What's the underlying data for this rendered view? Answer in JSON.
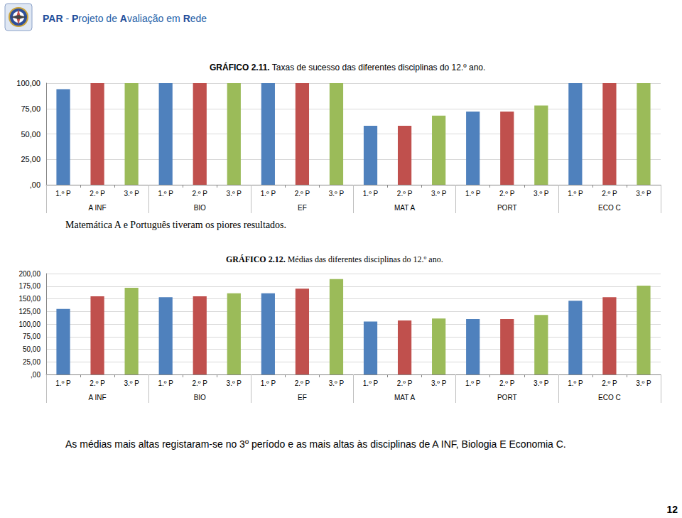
{
  "page": {
    "header": "PAR - Projeto de Avaliação em Rede",
    "page_number": 12
  },
  "chart_data": [
    {
      "type": "bar",
      "title": "GRÁFICO 2.11. Taxas de sucesso das diferentes disciplinas do 12.º ano.",
      "categories": [
        "1.º P",
        "2.º P",
        "3.º P",
        "1.º P",
        "2.º P",
        "3.º P",
        "1.º P",
        "2.º P",
        "3.º P",
        "1.º P",
        "2.º P",
        "3.º P",
        "1.º P",
        "2.º P",
        "3.º P",
        "1.º P",
        "2.º P",
        "3.º P"
      ],
      "group_labels": [
        "A INF",
        "BIO",
        "EF",
        "MAT A",
        "PORT",
        "ECO C"
      ],
      "values": [
        94,
        100,
        100,
        100,
        100,
        100,
        100,
        100,
        100,
        58,
        58,
        68,
        72,
        72,
        78,
        100,
        100,
        100
      ],
      "colors": [
        "#4f81bd",
        "#c0504d",
        "#9bbb59",
        "#4f81bd",
        "#c0504d",
        "#9bbb59",
        "#4f81bd",
        "#c0504d",
        "#9bbb59",
        "#4f81bd",
        "#c0504d",
        "#9bbb59",
        "#4f81bd",
        "#c0504d",
        "#9bbb59",
        "#4f81bd",
        "#c0504d",
        "#9bbb59"
      ],
      "ylim": [
        0,
        100
      ],
      "yticks": [
        {
          "value": 0,
          "label": ",00"
        },
        {
          "value": 25,
          "label": "25,00"
        },
        {
          "value": 50,
          "label": "50,00"
        },
        {
          "value": 75,
          "label": "75,00"
        },
        {
          "value": 100,
          "label": "100,00"
        }
      ],
      "grid": true,
      "annotation": "Matemática A e Português tiveram os piores resultados."
    },
    {
      "type": "bar",
      "title": "GRÁFICO 2.12. Médias das diferentes disciplinas do 12.º ano.",
      "categories": [
        "1.º P",
        "2.º P",
        "3.º P",
        "1.º P",
        "2.º P",
        "3.º P",
        "1.º P",
        "2.º P",
        "3.º P",
        "1.º P",
        "2.º P",
        "3.º P",
        "1.º P",
        "2.º P",
        "3.º P",
        "1.º P",
        "2.º P",
        "3.º P"
      ],
      "group_labels": [
        "A INF",
        "BIO",
        "EF",
        "MAT A",
        "PORT",
        "ECO C"
      ],
      "values": [
        130,
        155,
        172,
        153,
        155,
        161,
        161,
        170,
        189,
        105,
        107,
        111,
        110,
        110,
        118,
        146,
        153,
        176
      ],
      "colors": [
        "#4f81bd",
        "#c0504d",
        "#9bbb59",
        "#4f81bd",
        "#c0504d",
        "#9bbb59",
        "#4f81bd",
        "#c0504d",
        "#9bbb59",
        "#4f81bd",
        "#c0504d",
        "#9bbb59",
        "#4f81bd",
        "#c0504d",
        "#9bbb59",
        "#4f81bd",
        "#c0504d",
        "#9bbb59"
      ],
      "ylim": [
        0,
        200
      ],
      "yticks": [
        {
          "value": 0,
          "label": ",00"
        },
        {
          "value": 25,
          "label": "25,00"
        },
        {
          "value": 50,
          "label": "50,00"
        },
        {
          "value": 75,
          "label": "75,00"
        },
        {
          "value": 100,
          "label": "100,00"
        },
        {
          "value": 125,
          "label": "125,00"
        },
        {
          "value": 150,
          "label": "150,00"
        },
        {
          "value": 175,
          "label": "175,00"
        },
        {
          "value": 200,
          "label": "200,00"
        }
      ],
      "grid": true,
      "annotation": "As médias mais altas registaram-se no 3º período e as mais altas às disciplinas de A INF, Biologia E Economia C."
    }
  ]
}
